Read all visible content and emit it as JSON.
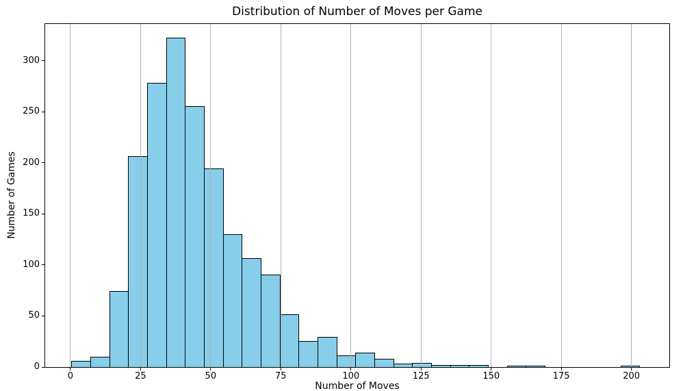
{
  "chart_data": {
    "type": "bar",
    "subtype": "histogram",
    "title": "Distribution of Number of Moves per Game",
    "xlabel": "Number of Moves",
    "ylabel": "Number of Games",
    "bin_edges": [
      0.5,
      7.25,
      14.0,
      20.75,
      27.5,
      34.25,
      41.0,
      47.75,
      54.5,
      61.25,
      68.0,
      74.75,
      81.5,
      88.25,
      95.0,
      101.75,
      108.5,
      115.25,
      122.0,
      128.75,
      135.5,
      142.25,
      149.0,
      155.75,
      162.5,
      169.25,
      176.0,
      182.75,
      189.5,
      196.25,
      203.0
    ],
    "counts": [
      6,
      10,
      74,
      206,
      278,
      322,
      255,
      194,
      130,
      106,
      90,
      51,
      25,
      29,
      11,
      14,
      8,
      3,
      4,
      2,
      2,
      2,
      0,
      1,
      1,
      0,
      0,
      0,
      0,
      1
    ],
    "xticks": [
      0,
      25,
      50,
      75,
      100,
      125,
      150,
      175,
      200
    ],
    "yticks": [
      0,
      50,
      100,
      150,
      200,
      250,
      300
    ],
    "xlim": [
      -9.0,
      213.5
    ],
    "ylim": [
      0,
      336
    ],
    "grid": "vertical-only",
    "legend": "none",
    "bar_color": "#87CEEB",
    "bar_edge_color": "#000000",
    "grid_color": "#b0b0b0",
    "background_color": "#ffffff"
  }
}
